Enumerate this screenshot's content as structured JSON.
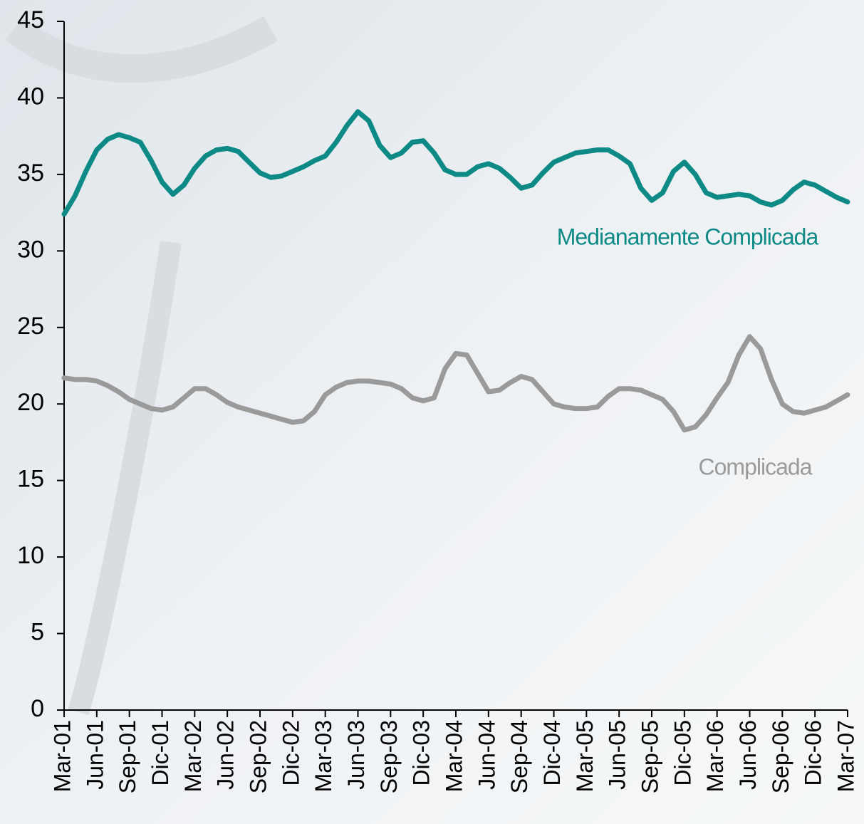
{
  "chart_data": {
    "type": "line",
    "categories": [
      "Mar-01",
      null,
      null,
      "Jun-01",
      null,
      null,
      "Sep-01",
      null,
      null,
      "Dic-01",
      null,
      null,
      "Mar-02",
      null,
      null,
      "Jun-02",
      null,
      null,
      "Sep-02",
      null,
      null,
      "Dic-02",
      null,
      null,
      "Mar-03",
      null,
      null,
      "Jun-03",
      null,
      null,
      "Sep-03",
      null,
      null,
      "Dic-03",
      null,
      null,
      "Mar-04",
      null,
      null,
      "Jun-04",
      null,
      null,
      "Sep-04",
      null,
      null,
      "Dic-04",
      null,
      null,
      "Mar-05",
      null,
      null,
      "Jun-05",
      null,
      null,
      "Sep-05",
      null,
      null,
      "Dic-05",
      null,
      null,
      "Mar-06",
      null,
      null,
      "Jun-06",
      null,
      null,
      "Sep-06",
      null,
      null,
      "Dic-06",
      null,
      null,
      "Mar-07"
    ],
    "series": [
      {
        "name": "Medianamente Complicada",
        "color": "#0e8a86",
        "values": [
          32.4,
          33.6,
          35.2,
          36.6,
          37.3,
          37.6,
          37.4,
          37.1,
          35.9,
          34.5,
          33.7,
          34.3,
          35.4,
          36.2,
          36.6,
          36.7,
          36.5,
          35.8,
          35.1,
          34.8,
          34.9,
          35.2,
          35.5,
          35.9,
          36.2,
          37.1,
          38.2,
          39.1,
          38.5,
          36.9,
          36.1,
          36.4,
          37.1,
          37.2,
          36.4,
          35.3,
          35.0,
          35.0,
          35.5,
          35.7,
          35.4,
          34.8,
          34.1,
          34.3,
          35.1,
          35.8,
          36.1,
          36.4,
          36.5,
          36.6,
          36.6,
          36.2,
          35.7,
          34.1,
          33.3,
          33.8,
          35.2,
          35.8,
          35.0,
          33.8,
          33.5,
          33.6,
          33.7,
          33.6,
          33.2,
          33.0,
          33.3,
          34.0,
          34.5,
          34.3,
          33.9,
          33.5,
          33.2
        ]
      },
      {
        "name": "Complicada",
        "color": "#9a9a9a",
        "values": [
          21.7,
          21.6,
          21.6,
          21.5,
          21.2,
          20.8,
          20.3,
          20.0,
          19.7,
          19.6,
          19.8,
          20.4,
          21.0,
          21.0,
          20.6,
          20.1,
          19.8,
          19.6,
          19.4,
          19.2,
          19.0,
          18.8,
          18.9,
          19.5,
          20.6,
          21.1,
          21.4,
          21.5,
          21.5,
          21.4,
          21.3,
          21.0,
          20.4,
          20.2,
          20.4,
          22.3,
          23.3,
          23.2,
          22.0,
          20.8,
          20.9,
          21.4,
          21.8,
          21.6,
          20.8,
          20.0,
          19.8,
          19.7,
          19.7,
          19.8,
          20.5,
          21.0,
          21.0,
          20.9,
          20.6,
          20.3,
          19.5,
          18.3,
          18.5,
          19.3,
          20.4,
          21.4,
          23.2,
          24.4,
          23.6,
          21.6,
          20.0,
          19.5,
          19.4,
          19.6,
          19.8,
          20.2,
          20.6
        ]
      }
    ],
    "ylim": [
      0,
      45
    ],
    "yticks": [
      0,
      5,
      10,
      15,
      20,
      25,
      30,
      35,
      40,
      45
    ]
  }
}
